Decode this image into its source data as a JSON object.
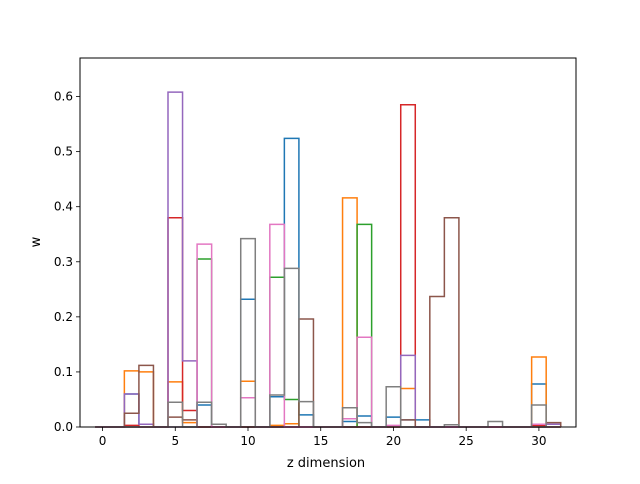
{
  "chart_data": {
    "type": "bar",
    "style": "step-histogram",
    "xlabel": "z dimension",
    "ylabel": "w",
    "xlim": [
      -1.55,
      32.55
    ],
    "ylim": [
      0,
      0.67
    ],
    "xticks": [
      0,
      5,
      10,
      15,
      20,
      25,
      30
    ],
    "yticks": [
      0.0,
      0.1,
      0.2,
      0.3,
      0.4,
      0.5,
      0.6
    ],
    "grid": false,
    "legend": "none",
    "bin_width": 1,
    "x": [
      0,
      1,
      2,
      3,
      4,
      5,
      6,
      7,
      8,
      9,
      10,
      11,
      12,
      13,
      14,
      15,
      16,
      17,
      18,
      19,
      20,
      21,
      22,
      23,
      24,
      25,
      26,
      27,
      28,
      29,
      30,
      31
    ],
    "series": [
      {
        "color": "#1f77b4",
        "values": [
          0,
          0,
          0.06,
          0.005,
          0,
          0,
          0,
          0.04,
          0,
          0,
          0.232,
          0,
          0.055,
          0.524,
          0.022,
          0,
          0,
          0.01,
          0.02,
          0,
          0.018,
          0.013,
          0.013,
          0,
          0,
          0,
          0,
          0,
          0,
          0,
          0.078,
          0.005
        ]
      },
      {
        "color": "#ff7f0e",
        "values": [
          0,
          0,
          0.102,
          0.1,
          0,
          0.082,
          0.008,
          0,
          0,
          0,
          0.083,
          0,
          0.003,
          0.006,
          0,
          0,
          0,
          0.416,
          0,
          0,
          0,
          0.07,
          0,
          0,
          0,
          0,
          0,
          0,
          0,
          0,
          0.127,
          0
        ]
      },
      {
        "color": "#2ca02c",
        "values": [
          0,
          0,
          0,
          0,
          0,
          0,
          0,
          0.305,
          0,
          0,
          0,
          0,
          0.272,
          0.05,
          0,
          0,
          0,
          0,
          0.368,
          0,
          0,
          0,
          0,
          0,
          0,
          0,
          0,
          0,
          0,
          0,
          0,
          0
        ]
      },
      {
        "color": "#d62728",
        "values": [
          0,
          0,
          0.003,
          0,
          0,
          0.38,
          0.03,
          0,
          0,
          0,
          0,
          0,
          0,
          0,
          0,
          0,
          0,
          0,
          0,
          0,
          0,
          0.585,
          0,
          0,
          0,
          0,
          0,
          0,
          0,
          0,
          0.003,
          0
        ]
      },
      {
        "color": "#9467bd",
        "values": [
          0,
          0,
          0.06,
          0.005,
          0,
          0.608,
          0.12,
          0,
          0,
          0,
          0,
          0,
          0,
          0,
          0,
          0,
          0,
          0,
          0,
          0,
          0,
          0.13,
          0,
          0,
          0,
          0,
          0,
          0,
          0,
          0,
          0,
          0.005
        ]
      },
      {
        "color": "#8c564b",
        "values": [
          0,
          0,
          0.025,
          0.112,
          0,
          0.018,
          0.013,
          0,
          0,
          0,
          0,
          0,
          0,
          0,
          0.196,
          0,
          0,
          0,
          0,
          0,
          0,
          0.013,
          0,
          0.237,
          0.38,
          0,
          0,
          0,
          0,
          0,
          0,
          0.008
        ]
      },
      {
        "color": "#e377c2",
        "values": [
          0,
          0,
          0,
          0,
          0,
          0,
          0,
          0.332,
          0,
          0,
          0.053,
          0,
          0.368,
          0,
          0,
          0,
          0,
          0.015,
          0.163,
          0,
          0.003,
          0,
          0,
          0,
          0,
          0,
          0,
          0,
          0,
          0,
          0.005,
          0
        ]
      },
      {
        "color": "#7f7f7f",
        "values": [
          0,
          0,
          0,
          0,
          0,
          0.045,
          0,
          0.045,
          0.005,
          0,
          0.342,
          0,
          0.058,
          0.288,
          0.046,
          0,
          0,
          0.035,
          0.008,
          0,
          0.073,
          0,
          0,
          0,
          0.004,
          0,
          0,
          0.01,
          0,
          0,
          0.04,
          0
        ]
      }
    ]
  }
}
